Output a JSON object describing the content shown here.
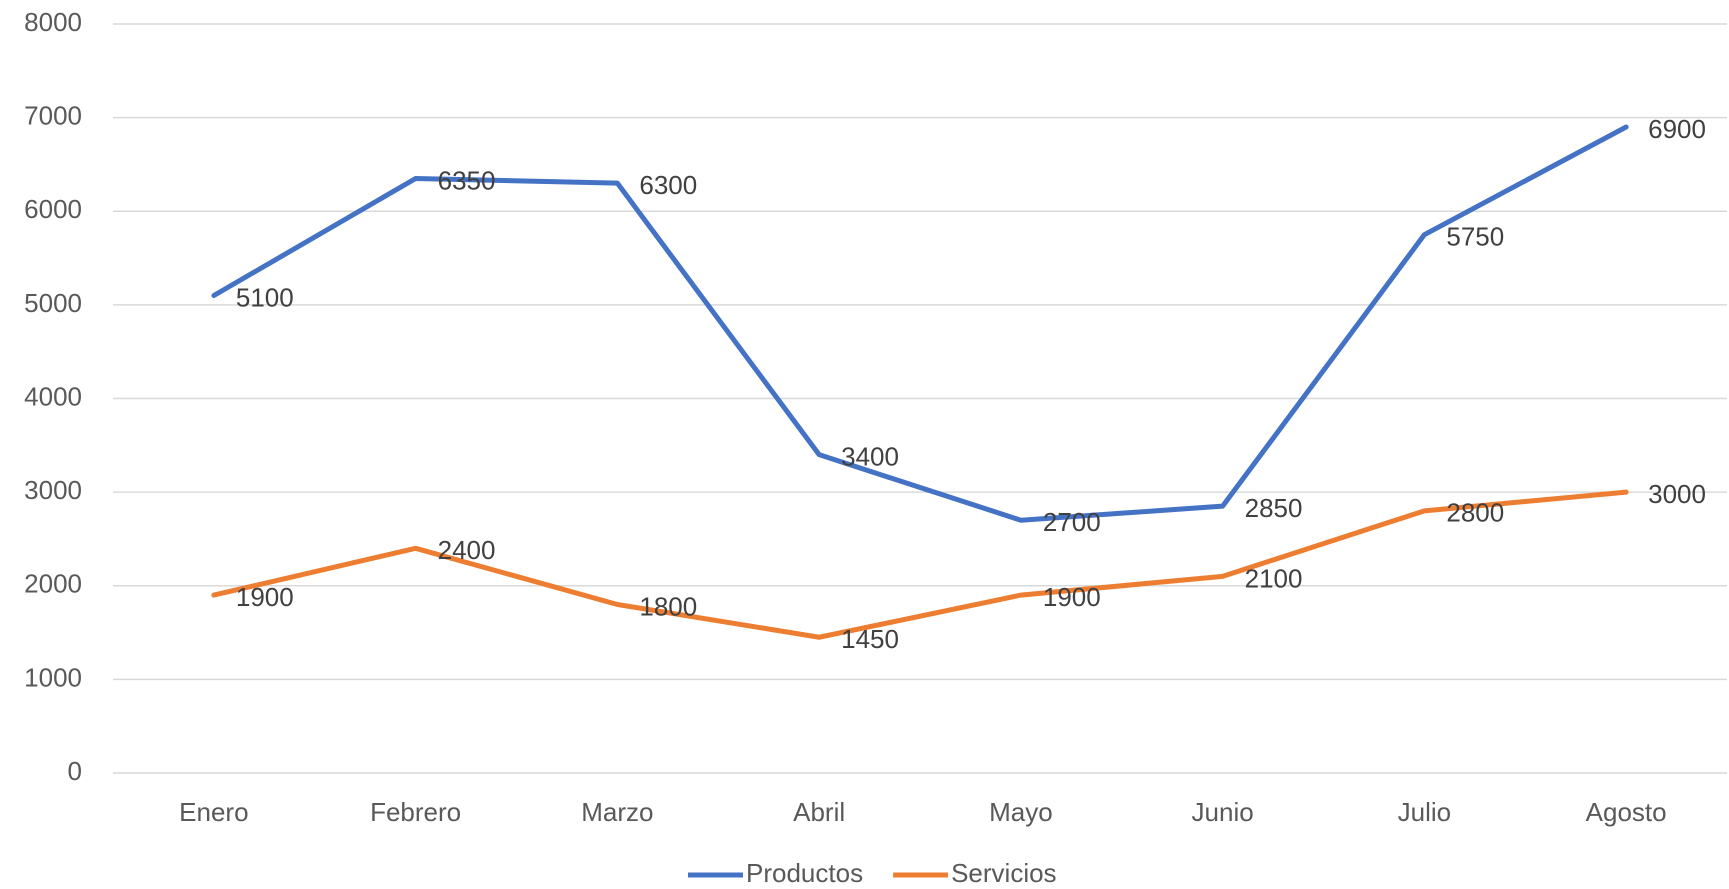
{
  "chart_data": {
    "type": "line",
    "categories": [
      "Enero",
      "Febrero",
      "Marzo",
      "Abril",
      "Mayo",
      "Junio",
      "Julio",
      "Agosto"
    ],
    "series": [
      {
        "name": "Productos",
        "color": "#4472c4",
        "values": [
          5100,
          6350,
          6300,
          3400,
          2700,
          2850,
          5750,
          6900
        ]
      },
      {
        "name": "Servicios",
        "color": "#ed7d31",
        "values": [
          1900,
          2400,
          1800,
          1450,
          1900,
          2100,
          2800,
          3000
        ]
      }
    ],
    "ylim": [
      0,
      8000
    ],
    "yticks": [
      0,
      1000,
      2000,
      3000,
      4000,
      5000,
      6000,
      7000,
      8000
    ],
    "grid": true,
    "legend": "bottom",
    "data_labels": true
  }
}
